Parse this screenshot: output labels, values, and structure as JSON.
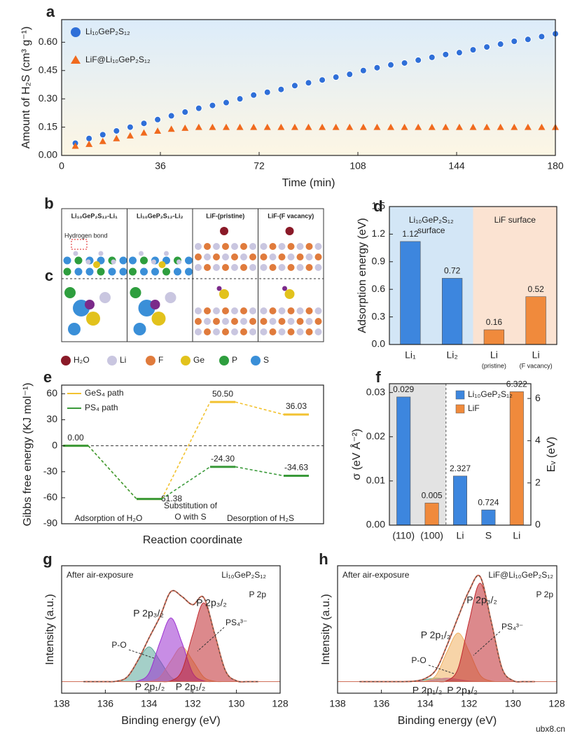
{
  "chart_data": [
    {
      "label": "a",
      "type": "scatter",
      "x_label": "Time (min)",
      "y_label": "Amount of H₂S (cm³ g⁻¹)",
      "x": [
        5,
        10,
        15,
        20,
        25,
        30,
        35,
        40,
        45,
        50,
        55,
        60,
        65,
        70,
        75,
        80,
        85,
        90,
        95,
        100,
        105,
        110,
        115,
        120,
        125,
        130,
        135,
        140,
        145,
        150,
        155,
        160,
        165,
        170,
        175,
        180
      ],
      "series": [
        {
          "name": "Li₁₀GeP₂S₁₂",
          "color": "#2f6fd8",
          "marker": "circle",
          "values": [
            0.065,
            0.09,
            0.11,
            0.13,
            0.15,
            0.17,
            0.19,
            0.21,
            0.23,
            0.25,
            0.265,
            0.28,
            0.3,
            0.32,
            0.335,
            0.35,
            0.37,
            0.385,
            0.4,
            0.415,
            0.43,
            0.45,
            0.465,
            0.48,
            0.49,
            0.505,
            0.52,
            0.535,
            0.545,
            0.56,
            0.575,
            0.59,
            0.605,
            0.615,
            0.63,
            0.645
          ]
        },
        {
          "name": "LiF@Li₁₀GeP₂S₁₂",
          "color": "#f06a1e",
          "marker": "triangle",
          "values": [
            0.05,
            0.06,
            0.075,
            0.09,
            0.105,
            0.12,
            0.13,
            0.14,
            0.145,
            0.15,
            0.15,
            0.15,
            0.15,
            0.15,
            0.15,
            0.15,
            0.15,
            0.15,
            0.15,
            0.15,
            0.15,
            0.15,
            0.15,
            0.15,
            0.15,
            0.15,
            0.15,
            0.15,
            0.15,
            0.15,
            0.15,
            0.15,
            0.15,
            0.15,
            0.15,
            0.15
          ]
        }
      ],
      "xlim": [
        0,
        180
      ],
      "xticks": [
        0,
        36,
        72,
        108,
        144,
        180
      ],
      "ylim": [
        0,
        0.72
      ],
      "yticks": [
        {
          "value": 0,
          "label": "0.00"
        },
        0.15,
        {
          "value": 0.3,
          "label": "0.30"
        },
        0.45,
        {
          "value": 0.6,
          "label": "0.60"
        }
      ]
    },
    {
      "label": "d",
      "type": "bar",
      "y_label": "Adsorption energy (eV)",
      "categories": [
        "Li₁",
        "Li₂",
        "Li",
        "Li"
      ],
      "category_notes": [
        null,
        null,
        "(pristine)",
        "(F vacancy)"
      ],
      "values": [
        1.12,
        0.72,
        0.16,
        0.52
      ],
      "colors": [
        "#3d86de",
        "#3d86de",
        "#f08a3c",
        "#f08a3c"
      ],
      "regions": [
        {
          "lines": [
            "Li₁₀GeP₂S₁₂",
            "surface"
          ],
          "color": "#d3e6f6"
        },
        {
          "lines": [
            "LiF surface"
          ],
          "color": "#fbe3d2"
        }
      ],
      "ylim": [
        0,
        1.5
      ],
      "yticks": [
        {
          "value": 0,
          "label": "0.0"
        },
        0.3,
        0.6,
        0.9,
        1.2,
        1.5
      ]
    },
    {
      "label": "e",
      "type": "level",
      "x_label": "Reaction coordinate",
      "y_label": "Gibbs free energy (KJ mol⁻¹)",
      "series": [
        {
          "name": "GeS₄ path",
          "color": "#f2c230",
          "values": [
            0,
            -61.38,
            50.5,
            36.03
          ],
          "value_labels": [
            "0.00",
            "-61.38",
            "50.50",
            "36.03"
          ]
        },
        {
          "name": "PS₄ path",
          "color": "#3a9a3a",
          "values": [
            0,
            -61.38,
            -24.3,
            -34.63
          ],
          "value_labels": [
            null,
            null,
            "-24.30",
            "-34.63"
          ]
        }
      ],
      "annotations": [
        {
          "lines": [
            "Adsorption of H₂O"
          ]
        },
        {
          "lines": [
            "Substitution of",
            "O with S"
          ]
        },
        {
          "lines": [
            "Desorption of H₂S"
          ]
        }
      ],
      "ylim": [
        -90,
        70
      ],
      "yticks": [
        60,
        30,
        0,
        -30,
        -60,
        -90
      ]
    },
    {
      "label": "f",
      "type": "bar",
      "y_label": "σ (eV Å⁻²)",
      "y2_label": "Eᵥ (eV)",
      "categories": [
        "(110)",
        "(100)",
        "Li",
        "S",
        "Li"
      ],
      "category_axes": [
        "y",
        "y",
        "y2",
        "y2",
        "y2"
      ],
      "shade_color": "#e3e3e3",
      "series": [
        {
          "name": "Li₁₀GeP₂S₁₂",
          "color": "#3d86de",
          "values": [
            0.029,
            null,
            2.327,
            0.724,
            null
          ]
        },
        {
          "name": "LiF",
          "color": "#f08a3c",
          "values": [
            null,
            0.005,
            null,
            null,
            6.322
          ]
        }
      ],
      "ylim": [
        0,
        0.032
      ],
      "yticks": [
        {
          "value": 0,
          "label": "0.00"
        },
        0.01,
        0.02,
        0.03
      ],
      "y2lim": [
        0,
        6.7
      ],
      "y2ticks": [
        0,
        2,
        4,
        6
      ]
    },
    {
      "label": "g",
      "type": "spectrum",
      "x_label": "Binding energy (eV)",
      "y_label": "Intensity (a.u.)",
      "x": [
        137,
        136.5,
        136,
        135.5,
        135,
        134.5,
        134,
        133.5,
        133,
        132.5,
        132,
        131.5,
        131,
        130.5,
        130,
        129.5,
        129
      ],
      "series": [
        {
          "name": "P 2p₁/₂",
          "color": "#5aa79a",
          "values": [
            0,
            0,
            0,
            0.003,
            0.04,
            0.18,
            0.3,
            0.18,
            0.04,
            0.003,
            0,
            0,
            0,
            0,
            0,
            0,
            0
          ]
        },
        {
          "name": "P 2p₁/₂",
          "color": "#f0b060",
          "values": [
            0,
            0,
            0,
            0,
            0,
            0,
            0.003,
            0.04,
            0.18,
            0.3,
            0.18,
            0.04,
            0.003,
            0,
            0,
            0,
            0
          ]
        },
        {
          "name": "P 2p₃/₂",
          "color": "#9b30d0",
          "values": [
            0,
            0,
            0,
            0,
            0,
            0.006,
            0.074,
            0.34,
            0.55,
            0.34,
            0.074,
            0.006,
            0,
            0,
            0,
            0,
            0
          ]
        },
        {
          "name": "P 2p₃/₂",
          "color": "#c0282e",
          "values": [
            0,
            0,
            0,
            0,
            0,
            0,
            0,
            0,
            0.007,
            0.092,
            0.41,
            0.68,
            0.41,
            0.092,
            0.007,
            0,
            0
          ]
        }
      ],
      "envelope": {
        "color": "#d0705a",
        "values": [
          0,
          0,
          0,
          0.003,
          0.04,
          0.186,
          0.377,
          0.56,
          0.777,
          0.735,
          0.664,
          0.726,
          0.413,
          0.092,
          0.007,
          0,
          0
        ]
      },
      "annotations": [
        "After air-exposure",
        "Li₁₀GeP₂S₁₂",
        "P 2p",
        "PS₄³⁻",
        "P-O"
      ],
      "xlim": [
        138,
        128
      ],
      "xticks": [
        138,
        136,
        134,
        132,
        130,
        128
      ],
      "ylim": [
        -0.1,
        1
      ]
    },
    {
      "label": "h",
      "type": "spectrum",
      "x_label": "Binding energy (eV)",
      "y_label": "Intensity (a.u.)",
      "x": [
        137,
        136.5,
        136,
        135.5,
        135,
        134.5,
        134,
        133.5,
        133,
        132.5,
        132,
        131.5,
        131,
        130.5,
        130,
        129.5,
        129
      ],
      "series": [
        {
          "name": "P 2p₁/₂",
          "color": "#5aa79a",
          "values": [
            0,
            0,
            0,
            0,
            0,
            0.004,
            0.018,
            0.03,
            0.018,
            0.004,
            0,
            0,
            0,
            0,
            0,
            0,
            0
          ]
        },
        {
          "name": "P 2p₃/₂",
          "color": "#9b30d0",
          "values": [
            0,
            0,
            0,
            0,
            0,
            0,
            0.004,
            0.018,
            0.03,
            0.018,
            0.004,
            0,
            0,
            0,
            0,
            0,
            0
          ]
        },
        {
          "name": "P 2p₁/₂",
          "color": "#f0b060",
          "values": [
            0,
            0,
            0,
            0,
            0,
            0,
            0.005,
            0.057,
            0.26,
            0.42,
            0.26,
            0.057,
            0.005,
            0,
            0,
            0,
            0
          ]
        },
        {
          "name": "P 2p₃/₂",
          "color": "#c0282e",
          "values": [
            0,
            0,
            0,
            0,
            0,
            0,
            0,
            0,
            0.009,
            0.115,
            0.52,
            0.85,
            0.52,
            0.115,
            0.009,
            0,
            0
          ]
        }
      ],
      "envelope": {
        "color": "#d0705a",
        "values": [
          0,
          0,
          0,
          0,
          0,
          0.004,
          0.027,
          0.105,
          0.317,
          0.557,
          0.784,
          0.907,
          0.525,
          0.115,
          0.009,
          0,
          0
        ]
      },
      "annotations": [
        "After air-exposure",
        "LiF@Li₁₀GeP₂S₁₂",
        "P 2p",
        "PS₄³⁻",
        "P-O"
      ],
      "xlim": [
        138,
        128
      ],
      "xticks": [
        138,
        136,
        134,
        132,
        130,
        128
      ],
      "ylim": [
        -0.1,
        1
      ]
    }
  ],
  "structure_panel": {
    "labels": [
      "b",
      "c"
    ],
    "columns": [
      "Li₁₀GeP₂S₁₂-Li₁",
      "Li₁₀GeP₂S₁₂-Li₂",
      "LiF-(pristine)",
      "LiF-(F vacancy)"
    ],
    "hydrogen_bond": "Hydrogen bond",
    "legend": [
      {
        "name": "H₂O",
        "color": "#8a1a28"
      },
      {
        "name": "Li",
        "color": "#c9c6e0"
      },
      {
        "name": "F",
        "color": "#e07b3c"
      },
      {
        "name": "Ge",
        "color": "#e2c21c"
      },
      {
        "name": "P",
        "color": "#2e9e3e"
      },
      {
        "name": "S",
        "color": "#3a8fd8"
      }
    ]
  },
  "watermark": "ubx8.cn"
}
